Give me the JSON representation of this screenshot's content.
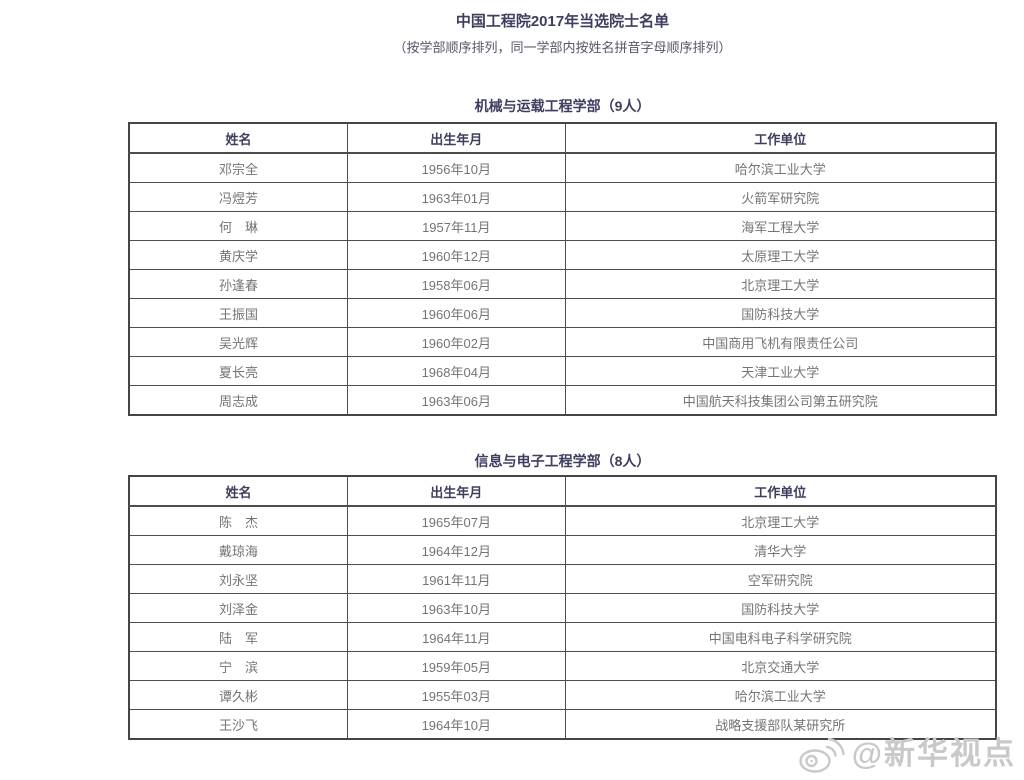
{
  "page": {
    "title": "中国工程院2017年当选院士名单",
    "subtitle": "（按学部顺序排列，同一学部内按姓名拼音字母顺序排列）"
  },
  "columns": [
    "姓名",
    "出生年月",
    "工作单位"
  ],
  "sections": [
    {
      "heading": "机械与运载工程学部（9人）",
      "rows": [
        [
          "邓宗全",
          "1956年10月",
          "哈尔滨工业大学"
        ],
        [
          "冯煜芳",
          "1963年01月",
          "火箭军研究院"
        ],
        [
          "何　琳",
          "1957年11月",
          "海军工程大学"
        ],
        [
          "黄庆学",
          "1960年12月",
          "太原理工大学"
        ],
        [
          "孙逢春",
          "1958年06月",
          "北京理工大学"
        ],
        [
          "王振国",
          "1960年06月",
          "国防科技大学"
        ],
        [
          "吴光辉",
          "1960年02月",
          "中国商用飞机有限责任公司"
        ],
        [
          "夏长亮",
          "1968年04月",
          "天津工业大学"
        ],
        [
          "周志成",
          "1963年06月",
          "中国航天科技集团公司第五研究院"
        ]
      ]
    },
    {
      "heading": "信息与电子工程学部（8人）",
      "rows": [
        [
          "陈　杰",
          "1965年07月",
          "北京理工大学"
        ],
        [
          "戴琼海",
          "1964年12月",
          "清华大学"
        ],
        [
          "刘永坚",
          "1961年11月",
          "空军研究院"
        ],
        [
          "刘泽金",
          "1963年10月",
          "国防科技大学"
        ],
        [
          "陆　军",
          "1964年11月",
          "中国电科电子科学研究院"
        ],
        [
          "宁　滨",
          "1959年05月",
          "北京交通大学"
        ],
        [
          "谭久彬",
          "1955年03月",
          "哈尔滨工业大学"
        ],
        [
          "王沙飞",
          "1964年10月",
          "战略支援部队某研究所"
        ]
      ]
    }
  ],
  "watermark": {
    "icon": "weibo-icon",
    "text": "@新华视点"
  },
  "colors": {
    "heading_text": "#3e3e5e",
    "body_text": "#747474",
    "table_border": "#4d4d4d",
    "watermark": "#c9c9c9",
    "background": "#ffffff"
  }
}
